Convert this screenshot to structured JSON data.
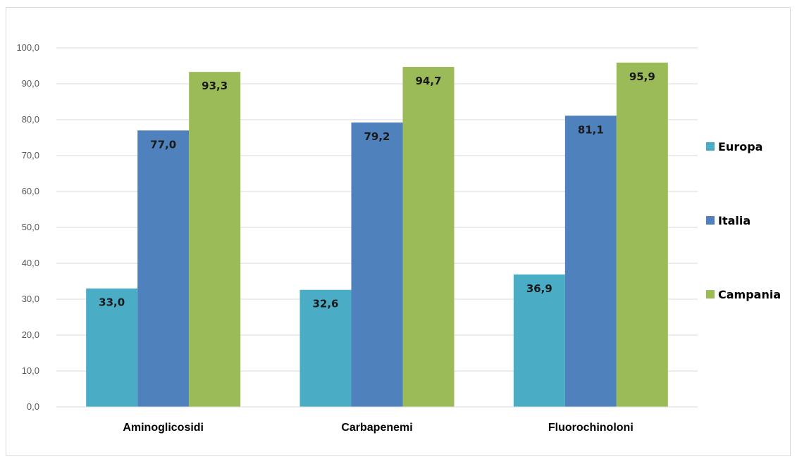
{
  "chart_data": {
    "type": "bar",
    "categories": [
      "Aminoglicosidi",
      "Carbapenemi",
      "Fluorochinoloni"
    ],
    "series": [
      {
        "name": "Europa",
        "values": [
          33.0,
          32.6,
          36.9
        ],
        "color": "#4bacc6",
        "labels": [
          "33,0",
          "32,6",
          "36,9"
        ]
      },
      {
        "name": "Italia",
        "values": [
          77.0,
          79.2,
          81.1
        ],
        "color": "#4f81bd",
        "labels": [
          "77,0",
          "79,2",
          "81,1"
        ]
      },
      {
        "name": "Campania",
        "values": [
          93.3,
          94.7,
          95.9
        ],
        "color": "#9bbb59",
        "labels": [
          "93,3",
          "94,7",
          "95,9"
        ]
      }
    ],
    "ylim": [
      0,
      100
    ],
    "yticks": [
      0,
      10,
      20,
      30,
      40,
      50,
      60,
      70,
      80,
      90,
      100
    ],
    "ytick_labels": [
      "0,0",
      "10,0",
      "20,0",
      "30,0",
      "40,0",
      "50,0",
      "60,0",
      "70,0",
      "80,0",
      "90,0",
      "100,0"
    ],
    "grid": true,
    "legend_position": "right",
    "title": "",
    "xlabel": "",
    "ylabel": ""
  }
}
